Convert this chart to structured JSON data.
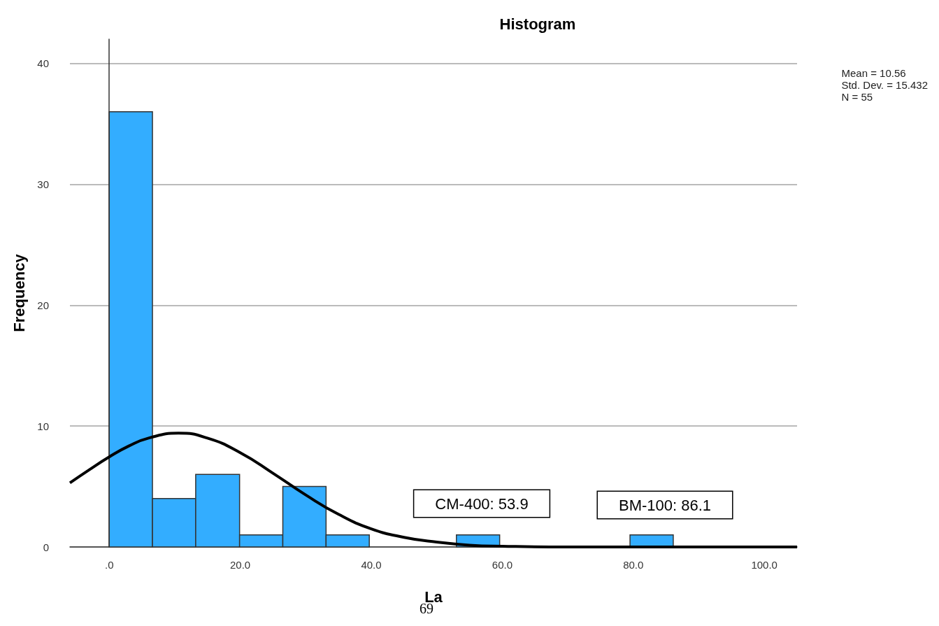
{
  "chart_data": {
    "type": "histogram",
    "title": "Histogram",
    "xlabel": "La",
    "ylabel": "Frequency",
    "bins": [
      0,
      6.6,
      13.2,
      19.9,
      26.5,
      33.1,
      39.7,
      53.0,
      59.6,
      79.5,
      86.1
    ],
    "series": [
      {
        "color": "#33adff",
        "values": [
          36,
          4,
          6,
          1,
          5,
          1,
          0,
          1,
          0,
          1
        ]
      },
      {
        "type": "line",
        "color": "#000000",
        "x": [
          -6,
          -3,
          0,
          3,
          6,
          10.56,
          15,
          20,
          25,
          30,
          35,
          40,
          45,
          50,
          55,
          60,
          70,
          80,
          90,
          100,
          105
        ],
        "values": [
          5.3,
          6.4,
          7.45,
          8.35,
          9.0,
          9.41,
          9.0,
          7.8,
          6.1,
          4.3,
          2.7,
          1.5,
          0.8,
          0.4,
          0.15,
          0.06,
          0,
          0,
          0,
          0,
          0
        ]
      }
    ],
    "xlim": [
      -6,
      105
    ],
    "xticks": [
      {
        "value": 0,
        "label": ".0"
      },
      {
        "value": 20,
        "label": "20.0"
      },
      {
        "value": 40,
        "label": "40.0"
      },
      {
        "value": 60,
        "label": "60.0"
      },
      {
        "value": 80,
        "label": "80.0"
      },
      {
        "value": 100,
        "label": "100.0"
      }
    ],
    "ylim": [
      0,
      42
    ],
    "yticks": [
      0,
      10,
      20,
      30,
      40
    ],
    "grid": "y",
    "annotations": [
      "Mean = 10.56\nStd. Dev. = 15.432\nN = 55",
      "CM-400: 53.9",
      "BM-100: 86.1",
      "69"
    ]
  }
}
